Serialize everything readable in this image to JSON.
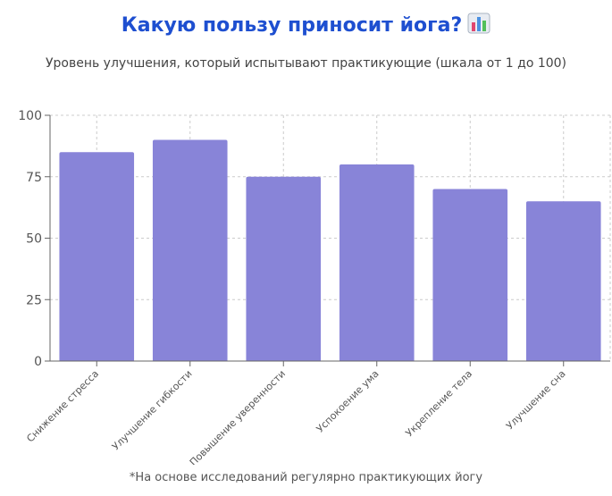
{
  "page": {
    "title": "Какую пользу приносит йога?",
    "title_icon": "bar-chart-emoji-icon",
    "subtitle": "Уровень улучшения, который испытывают практикующие (шкала от 1 до 100)",
    "footnote": "*На основе исследований регулярно практикующих йогу"
  },
  "colors": {
    "title": "#1e4fd0",
    "bar": "#8884d8",
    "grid": "#cccccc",
    "axis": "#666666"
  },
  "chart_data": {
    "type": "bar",
    "categories": [
      "Снижение стресса",
      "Улучшение гибкости",
      "Повышение уверенности",
      "Успокоение ума",
      "Укрепление тела",
      "Улучшение сна"
    ],
    "values": [
      85,
      90,
      75,
      80,
      70,
      65
    ],
    "ylim": [
      0,
      100
    ],
    "yticks": [
      0,
      25,
      50,
      75,
      100
    ],
    "grid": true,
    "legend": "none"
  }
}
